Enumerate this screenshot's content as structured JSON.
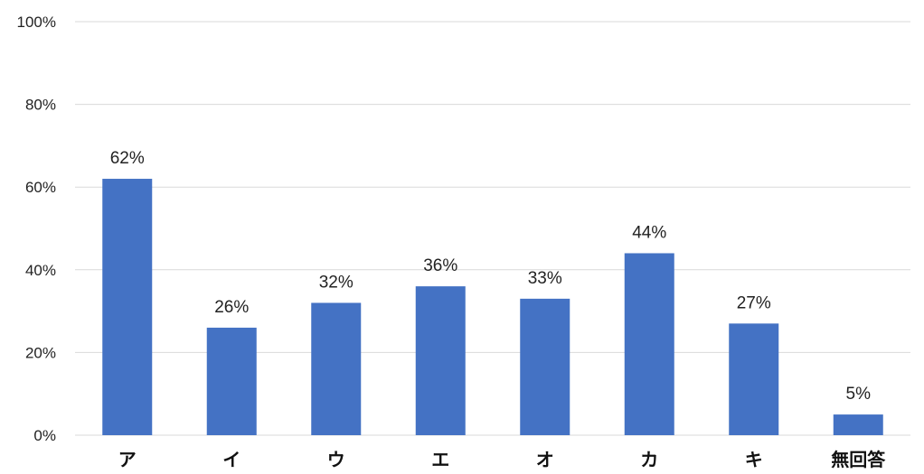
{
  "chart_data": {
    "type": "bar",
    "title": "",
    "xlabel": "",
    "ylabel": "",
    "categories": [
      "ア",
      "イ",
      "ウ",
      "エ",
      "オ",
      "カ",
      "キ",
      "無回答"
    ],
    "values": [
      62,
      26,
      32,
      36,
      33,
      44,
      27,
      5
    ],
    "data_labels": [
      "62%",
      "26%",
      "32%",
      "36%",
      "33%",
      "44%",
      "27%",
      "5%"
    ],
    "ylim": [
      0,
      100
    ],
    "yticks": [
      0,
      20,
      40,
      60,
      80,
      100
    ],
    "ytick_labels": [
      "0%",
      "20%",
      "40%",
      "60%",
      "80%",
      "100%"
    ],
    "grid": true,
    "legend": "none",
    "bar_color": "#4472C4",
    "grid_color": "#D9D9D9"
  }
}
